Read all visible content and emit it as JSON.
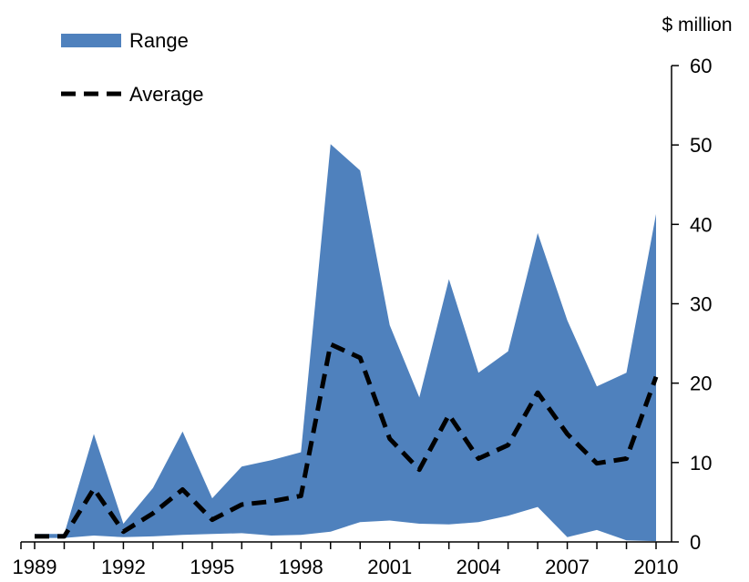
{
  "chart_data": {
    "type": "area",
    "ylabel": "$ million",
    "ylim": [
      0,
      60
    ],
    "yticks": [
      "0",
      "10",
      "20",
      "30",
      "40",
      "50",
      "60"
    ],
    "xticks": [
      "1989",
      "1992",
      "1995",
      "1998",
      "2001",
      "2004",
      "2007",
      "2010"
    ],
    "x": [
      1989,
      1990,
      1991,
      1992,
      1993,
      1994,
      1995,
      1996,
      1997,
      1998,
      1999,
      2000,
      2001,
      2002,
      2003,
      2004,
      2005,
      2006,
      2007,
      2008,
      2009,
      2010
    ],
    "series": [
      {
        "name": "Range",
        "kind": "band",
        "color": "#4f81bd",
        "low": [
          0.5,
          0.5,
          0.8,
          0.6,
          0.7,
          0.9,
          1.0,
          1.1,
          0.8,
          0.9,
          1.3,
          2.5,
          2.7,
          2.3,
          2.2,
          2.5,
          3.3,
          4.4,
          0.6,
          1.5,
          0.2,
          0.1
        ],
        "high": [
          1.0,
          1.0,
          13.6,
          2.3,
          6.8,
          13.9,
          5.5,
          9.5,
          10.3,
          11.3,
          50.1,
          46.8,
          27.3,
          18.2,
          33.1,
          21.3,
          24.0,
          38.9,
          27.9,
          19.6,
          21.3,
          41.3
        ]
      },
      {
        "name": "Average",
        "kind": "line",
        "color": "#000000",
        "values": [
          0.7,
          0.7,
          6.7,
          1.3,
          3.6,
          6.6,
          2.8,
          4.7,
          5.1,
          5.8,
          24.9,
          23.2,
          13.0,
          9.1,
          16.0,
          10.5,
          12.2,
          18.8,
          13.6,
          9.9,
          10.5,
          20.8
        ]
      }
    ],
    "legend_position": "top-left"
  }
}
